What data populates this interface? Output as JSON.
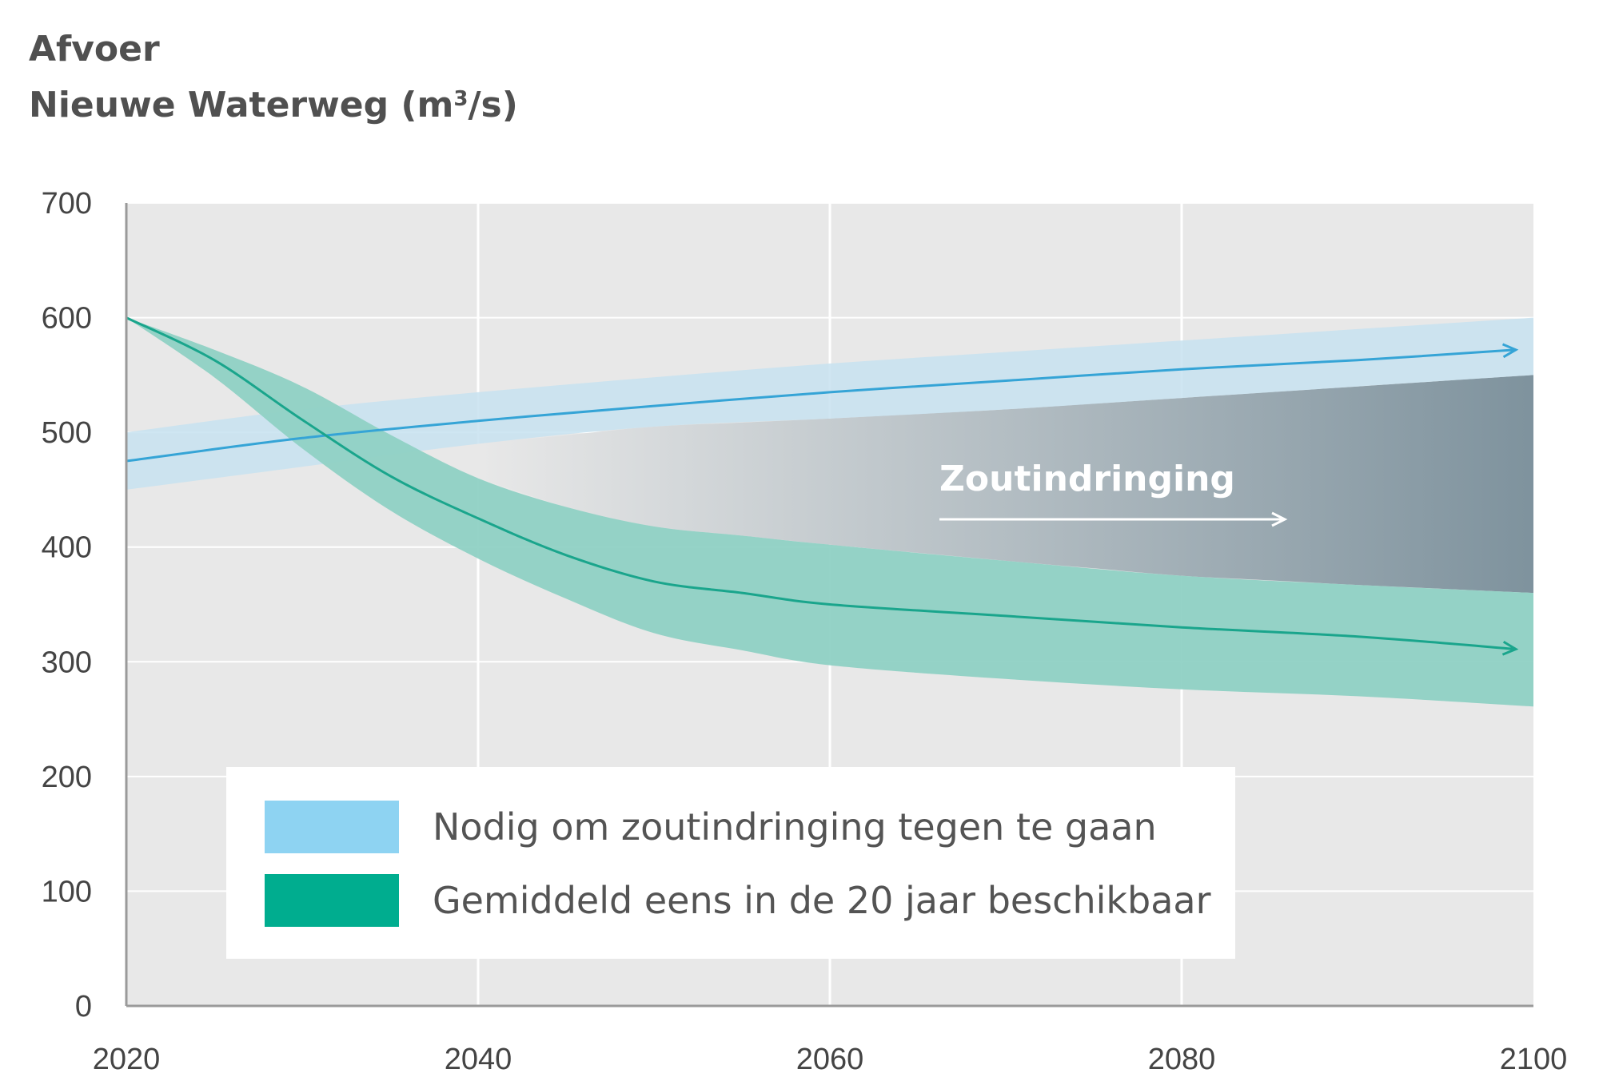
{
  "title": {
    "line1": "Afvoer",
    "line2_main": "Nieuwe Waterweg (m",
    "line2_sup": "3",
    "line2_end": "/s)"
  },
  "legend": {
    "items": [
      {
        "label": "Nodig om zoutindringing tegen te gaan",
        "color": "#8ed3f2"
      },
      {
        "label": "Gemiddeld eens in de 20 jaar beschikbaar",
        "color": "#00ad8f"
      }
    ]
  },
  "annotation": {
    "label": "Zoutindringing"
  },
  "colors": {
    "plot_background": "#e8e8e8",
    "grid": "#ffffff",
    "blue_band": "#c7e2f0",
    "blue_line": "#35a4d6",
    "green_band": "#8fd1c4",
    "green_line": "#1aa58c",
    "gap_dark": "#7f939e",
    "axis": "#9a9a9a",
    "tick_text": "#444444"
  },
  "chart_data": {
    "type": "area",
    "x_ticks": [
      "2020",
      "2040",
      "2060",
      "2080",
      "2100"
    ],
    "y_ticks": [
      "0",
      "100",
      "200",
      "300",
      "400",
      "500",
      "600",
      "700"
    ],
    "xlim": [
      2020,
      2100
    ],
    "ylim": [
      0,
      700
    ],
    "grid": true,
    "legend_position": "bottom-left",
    "series": [
      {
        "name": "Nodig om zoutindringing tegen te gaan",
        "type": "band_with_line",
        "x": [
          2020,
          2030,
          2040,
          2050,
          2060,
          2070,
          2080,
          2090,
          2100
        ],
        "lower": [
          450,
          470,
          490,
          505,
          512,
          520,
          530,
          540,
          550
        ],
        "upper": [
          500,
          520,
          535,
          548,
          560,
          570,
          580,
          590,
          600
        ],
        "line_x": [
          2020,
          2030,
          2040,
          2050,
          2060,
          2070,
          2080,
          2090,
          2099
        ],
        "line": [
          475,
          495,
          510,
          523,
          535,
          545,
          555,
          563,
          572
        ]
      },
      {
        "name": "Gemiddeld eens in de 20 jaar beschikbaar",
        "type": "band_with_line",
        "x": [
          2020,
          2025,
          2030,
          2035,
          2040,
          2045,
          2050,
          2055,
          2060,
          2070,
          2080,
          2090,
          2100
        ],
        "lower": [
          600,
          548,
          486,
          432,
          390,
          355,
          325,
          310,
          297,
          285,
          276,
          270,
          261
        ],
        "upper": [
          600,
          572,
          540,
          498,
          460,
          435,
          418,
          410,
          402,
          388,
          375,
          367,
          360
        ],
        "line_x": [
          2020,
          2025,
          2030,
          2035,
          2040,
          2045,
          2050,
          2055,
          2060,
          2070,
          2080,
          2090,
          2099
        ],
        "line": [
          600,
          563,
          511,
          462,
          425,
          393,
          370,
          360,
          350,
          340,
          330,
          322,
          311
        ]
      }
    ]
  }
}
